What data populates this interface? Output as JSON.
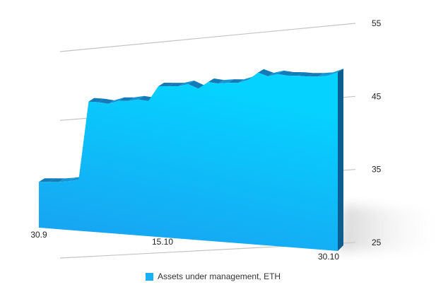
{
  "chart_data": {
    "type": "area",
    "series": [
      {
        "name": "Assets under management, ETH",
        "color": "#1ab0f5",
        "values": [
          31.2,
          31.3,
          31.4,
          31.6,
          31.9,
          42.6,
          42.6,
          42.5,
          43.0,
          43.1,
          43.4,
          43.3,
          45.4,
          45.5,
          45.6,
          46.0,
          45.5,
          46.5,
          46.4,
          46.6,
          46.7,
          47.2,
          48.3,
          47.9,
          48.3,
          48.2,
          48.3,
          48.3,
          48.4,
          48.6,
          49.2
        ],
        "peak_color": "#00d0ff"
      }
    ],
    "x_ticks": [
      "30.9",
      "15.10",
      "30.10"
    ],
    "y_ticks": [
      "25",
      "35",
      "45",
      "55"
    ],
    "ylim": [
      25,
      55
    ],
    "grid": true,
    "legend": {
      "label": "Assets under management, ETH",
      "position": "bottom"
    }
  }
}
